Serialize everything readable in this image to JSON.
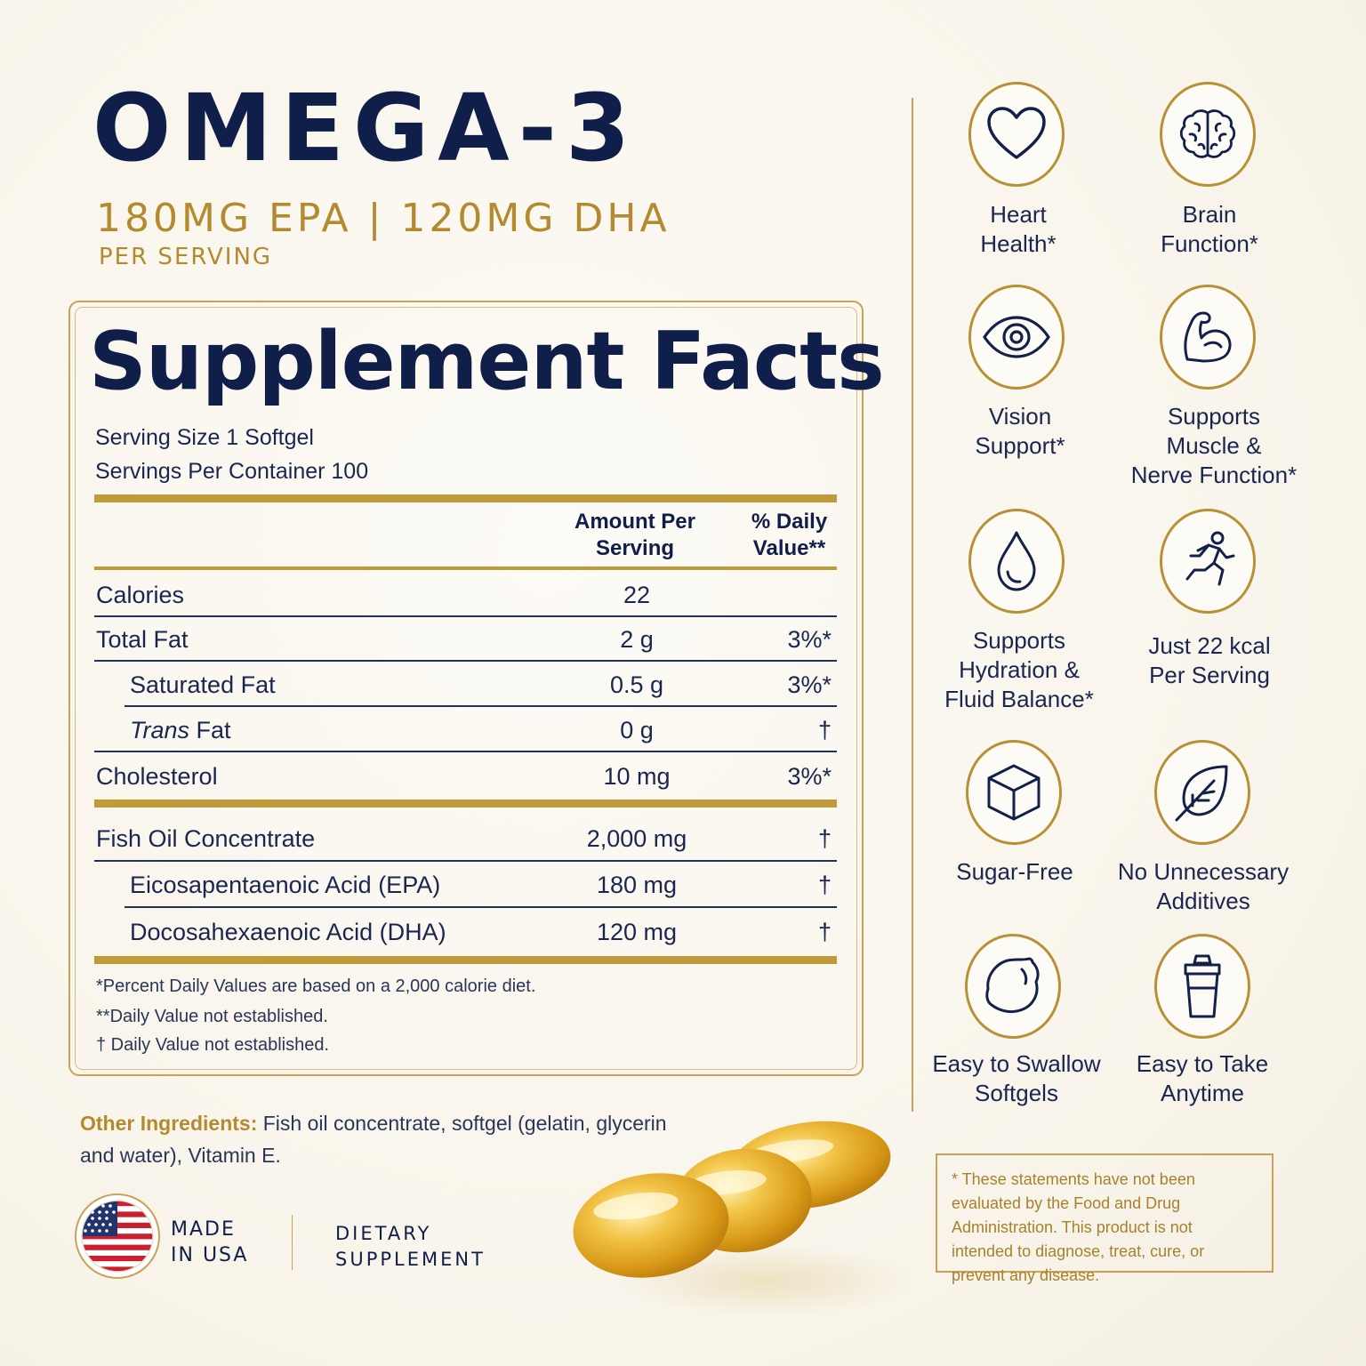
{
  "header": {
    "title": "OMEGA-3",
    "dose": "180MG EPA | 120MG DHA",
    "per_serving": "PER SERVING"
  },
  "facts": {
    "title": "Supplement Facts",
    "serving_size": "Serving Size 1 Softgel",
    "servings_per_container": "Servings Per Container 100",
    "col_amount_line1": "Amount Per",
    "col_amount_line2": "Serving",
    "col_dv_line1": "% Daily",
    "col_dv_line2": "Value**",
    "rows": [
      {
        "name": "Calories",
        "amount": "22",
        "dv": ""
      },
      {
        "name": "Total Fat",
        "amount": "2 g",
        "dv": "3%*"
      },
      {
        "name": "Saturated Fat",
        "amount": "0.5 g",
        "dv": "3%*"
      },
      {
        "name_italic": "Trans",
        "name_rest": " Fat",
        "amount": "0 g",
        "dv": "†"
      },
      {
        "name": "Cholesterol",
        "amount": "10 mg",
        "dv": "3%*"
      },
      {
        "name": "Fish Oil Concentrate",
        "amount": "2,000 mg",
        "dv": "†"
      },
      {
        "name": "Eicosapentaenoic Acid (EPA)",
        "amount": "180 mg",
        "dv": "†"
      },
      {
        "name": "Docosahexaenoic Acid (DHA)",
        "amount": "120 mg",
        "dv": "†"
      }
    ],
    "footnotes": [
      "*Percent Daily Values are based on a 2,000 calorie diet.",
      "**Daily Value not established.",
      "† Daily Value not established."
    ]
  },
  "other_ingredients": {
    "label": "Other Ingredients:",
    "text": " Fish oil concentrate, softgel (gelatin, glycerin and water), Vitamin E."
  },
  "badges": {
    "made_line1": "MADE",
    "made_line2": "IN USA",
    "dietary_line1": "DIETARY",
    "dietary_line2": "SUPPLEMENT"
  },
  "benefits": [
    {
      "icon": "heart-icon",
      "l1": "Heart",
      "l2": "Health*",
      "l3": ""
    },
    {
      "icon": "brain-icon",
      "l1": "Brain",
      "l2": "Function*",
      "l3": ""
    },
    {
      "icon": "eye-icon",
      "l1": "Vision",
      "l2": "Support*",
      "l3": ""
    },
    {
      "icon": "muscle-icon",
      "l1": "Supports",
      "l2": "Muscle &",
      "l3": "Nerve Function*"
    },
    {
      "icon": "droplet-icon",
      "l1": "Supports",
      "l2": "Hydration &",
      "l3": "Fluid Balance*"
    },
    {
      "icon": "runner-icon",
      "l1": "Just 22 kcal",
      "l2": "Per Serving",
      "l3": ""
    },
    {
      "icon": "cube-icon",
      "l1": "Sugar-Free",
      "l2": "",
      "l3": ""
    },
    {
      "icon": "leaf-icon",
      "l1": "No Unnecessary",
      "l2": "Additives",
      "l3": ""
    },
    {
      "icon": "lemon-icon",
      "l1": "Easy to Swallow",
      "l2": "Softgels",
      "l3": ""
    },
    {
      "icon": "shaker-icon",
      "l1": "Easy to Take",
      "l2": "Anytime",
      "l3": ""
    }
  ],
  "disclaimer": "* These statements have not been evaluated by the Food and Drug Administration. This product is not intended to diagnose, treat, cure, or prevent any disease.",
  "colors": {
    "navy": "#101e4a",
    "gold": "#b38a2e",
    "background": "#f8f4ea"
  }
}
